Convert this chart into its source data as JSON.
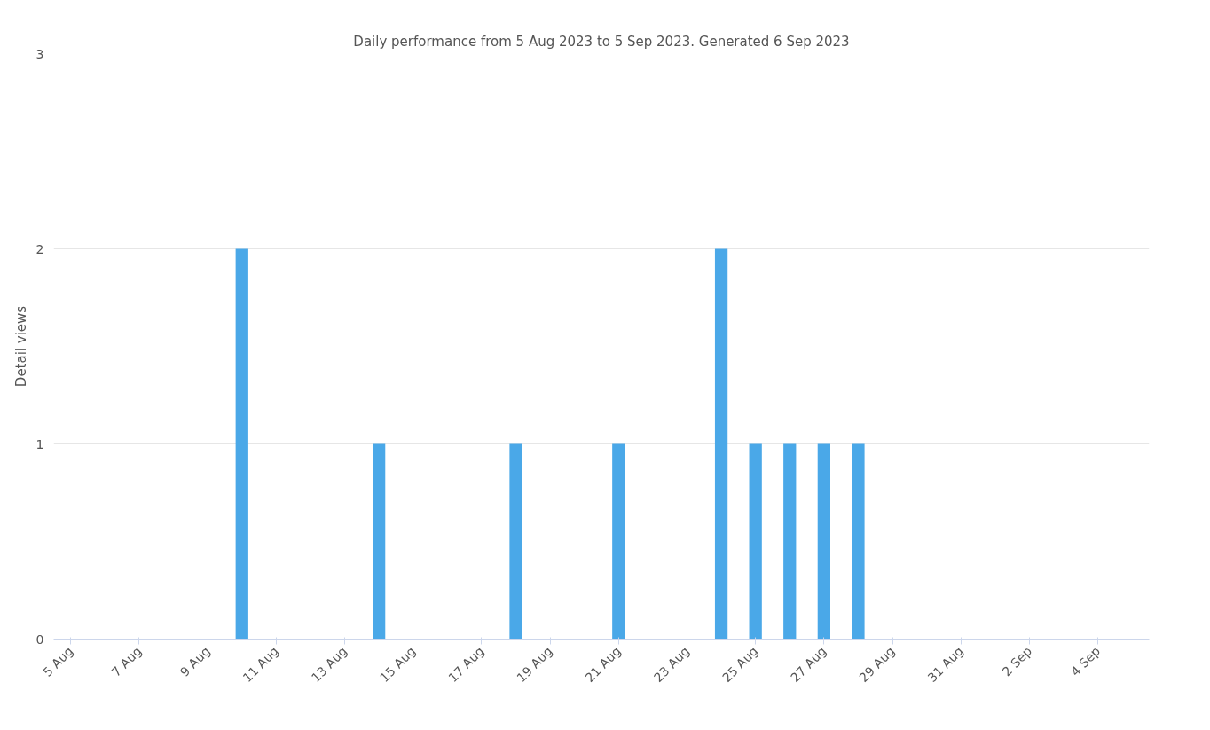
{
  "chart_data": {
    "type": "bar",
    "title": "Daily performance from 5 Aug 2023 to 5 Sep 2023. Generated 6 Sep 2023",
    "ylabel": "Detail views",
    "x": [
      "2023-08-10",
      "2023-08-14",
      "2023-08-18",
      "2023-08-21",
      "2023-08-24",
      "2023-08-25",
      "2023-08-26",
      "2023-08-27",
      "2023-08-28"
    ],
    "values": [
      2,
      1,
      1,
      1,
      2,
      1,
      1,
      1,
      1
    ],
    "color": "#4aa8e8",
    "xlim": [
      "2023-08-04T12:00",
      "2023-09-05T12:00"
    ],
    "xticks": [
      {
        "value": "2023-08-05",
        "label": "5 Aug"
      },
      {
        "value": "2023-08-07",
        "label": "7 Aug"
      },
      {
        "value": "2023-08-09",
        "label": "9 Aug"
      },
      {
        "value": "2023-08-11",
        "label": "11 Aug"
      },
      {
        "value": "2023-08-13",
        "label": "13 Aug"
      },
      {
        "value": "2023-08-15",
        "label": "15 Aug"
      },
      {
        "value": "2023-08-17",
        "label": "17 Aug"
      },
      {
        "value": "2023-08-19",
        "label": "19 Aug"
      },
      {
        "value": "2023-08-21",
        "label": "21 Aug"
      },
      {
        "value": "2023-08-23",
        "label": "23 Aug"
      },
      {
        "value": "2023-08-25",
        "label": "25 Aug"
      },
      {
        "value": "2023-08-27",
        "label": "27 Aug"
      },
      {
        "value": "2023-08-29",
        "label": "29 Aug"
      },
      {
        "value": "2023-08-31",
        "label": "31 Aug"
      },
      {
        "value": "2023-09-02",
        "label": "2 Sep"
      },
      {
        "value": "2023-09-04",
        "label": "4 Sep"
      }
    ],
    "ylim": [
      0,
      3
    ],
    "yticks": [
      0,
      1,
      2,
      3
    ],
    "grid": "y"
  }
}
